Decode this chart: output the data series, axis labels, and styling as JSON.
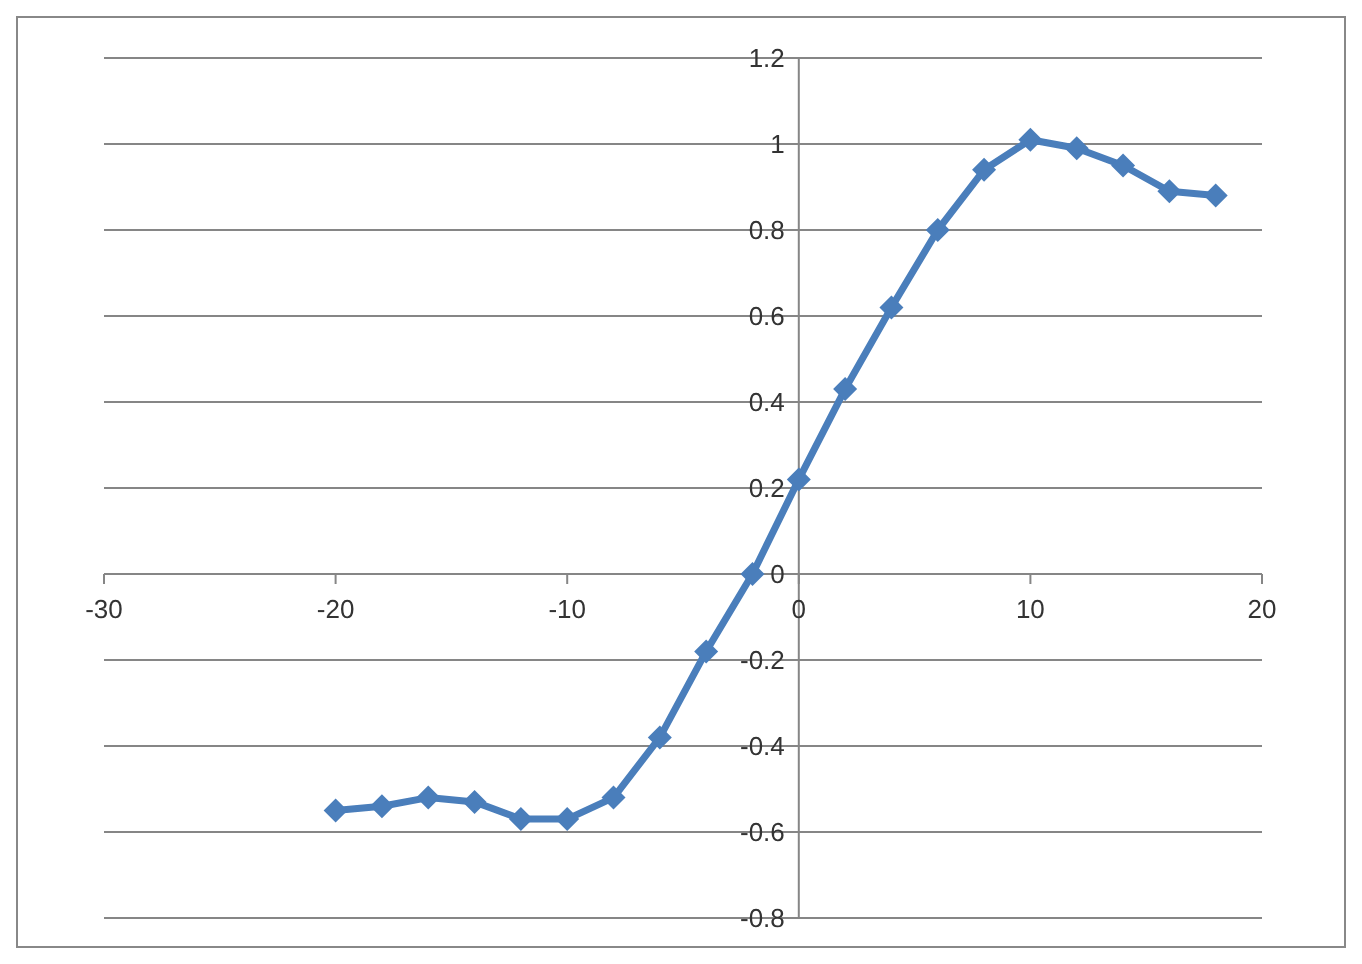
{
  "chart_data": {
    "type": "line",
    "x": [
      -20,
      -18,
      -16,
      -14,
      -12,
      -10,
      -8,
      -6,
      -4,
      -2,
      0,
      2,
      4,
      6,
      8,
      10,
      12,
      14,
      16,
      18
    ],
    "series": [
      {
        "color": "#4a7ebb",
        "values": [
          -0.55,
          -0.54,
          -0.52,
          -0.53,
          -0.57,
          -0.57,
          -0.52,
          -0.38,
          -0.18,
          0.0,
          0.22,
          0.43,
          0.62,
          0.8,
          0.94,
          1.01,
          0.99,
          0.95,
          0.89,
          0.88
        ]
      }
    ],
    "xlim": [
      -30,
      20
    ],
    "xticks": [
      -30,
      -20,
      -10,
      0,
      10,
      20
    ],
    "ylim": [
      -0.8,
      1.2
    ],
    "yticks": [
      -0.8,
      -0.6,
      -0.4,
      -0.2,
      0,
      0.2,
      0.4,
      0.6,
      0.8,
      1,
      1.2
    ],
    "grid": "y",
    "marker": "diamond",
    "line_style": "solid"
  }
}
